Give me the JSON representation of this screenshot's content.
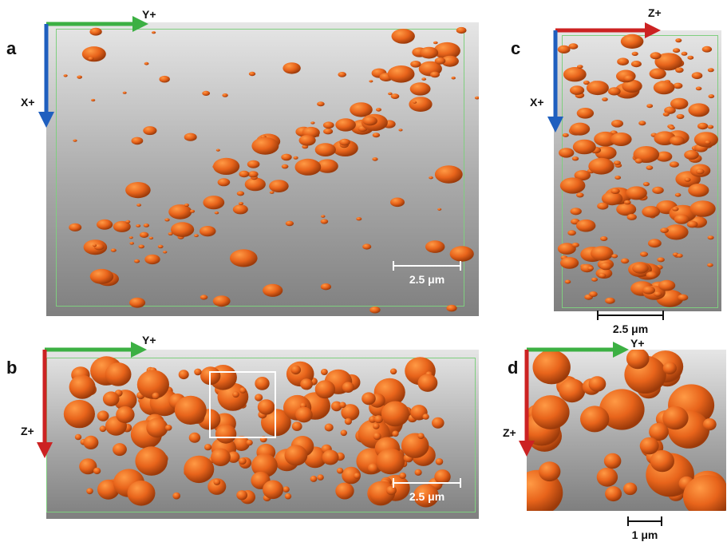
{
  "panels": {
    "a": {
      "label": "a",
      "axis_h": "Y+",
      "axis_v": "X+",
      "scale": "2.5 μm"
    },
    "b": {
      "label": "b",
      "axis_h": "Y+",
      "axis_v": "Z+",
      "scale": "2.5 μm"
    },
    "c": {
      "label": "c",
      "axis_h": "Z+",
      "axis_v": "X+",
      "scale": "2.5 μm"
    },
    "d": {
      "label": "d",
      "axis_h": "Y+",
      "axis_v": "Z+",
      "scale": "1 μm"
    }
  },
  "colors": {
    "particle": "#e8641b",
    "particle_highlight": "#ff9a45",
    "particle_shadow": "#9b3a0a",
    "axis_y": "#3cb043",
    "axis_x": "#1f5fbf",
    "axis_z": "#cc2222"
  }
}
